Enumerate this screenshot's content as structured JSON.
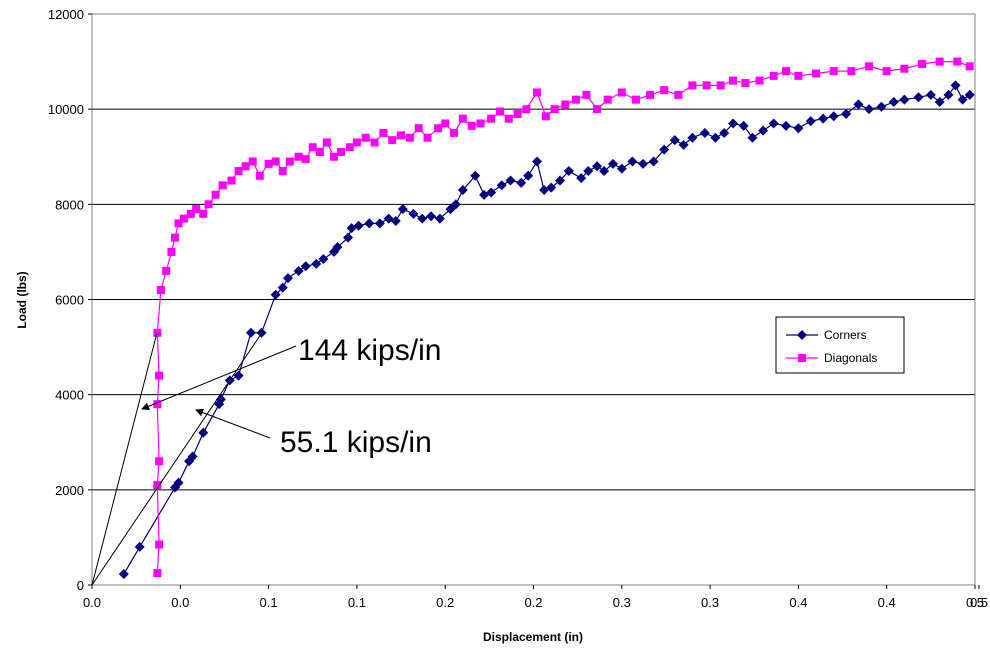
{
  "chart_data": {
    "type": "line",
    "xlabel": "Displacement (in)",
    "ylabel": "Load (lbs)",
    "xlim": [
      0,
      0.5
    ],
    "ylim": [
      0,
      12000
    ],
    "x_tick_labels": [
      "0.0",
      "0.0",
      "0.1",
      "0.1",
      "0.2",
      "0.2",
      "0.3",
      "0.3",
      "0.4",
      "0.4",
      "0.5",
      "0.5"
    ],
    "y_tick_labels": [
      "0",
      "2000",
      "4000",
      "6000",
      "8000",
      "10000",
      "12000"
    ],
    "grid": "horizontal",
    "legend_position": "right-middle",
    "series": [
      {
        "name": "Corners",
        "color": "#000080",
        "marker": "diamond",
        "points": [
          [
            0.018,
            230
          ],
          [
            0.027,
            800
          ],
          [
            0.047,
            2050
          ],
          [
            0.049,
            2150
          ],
          [
            0.055,
            2600
          ],
          [
            0.057,
            2700
          ],
          [
            0.063,
            3200
          ],
          [
            0.072,
            3800
          ],
          [
            0.073,
            3900
          ],
          [
            0.078,
            4300
          ],
          [
            0.083,
            4400
          ],
          [
            0.09,
            5300
          ],
          [
            0.096,
            5300
          ],
          [
            0.104,
            6100
          ],
          [
            0.108,
            6250
          ],
          [
            0.111,
            6450
          ],
          [
            0.117,
            6600
          ],
          [
            0.121,
            6700
          ],
          [
            0.127,
            6750
          ],
          [
            0.131,
            6850
          ],
          [
            0.137,
            7000
          ],
          [
            0.139,
            7100
          ],
          [
            0.145,
            7300
          ],
          [
            0.147,
            7500
          ],
          [
            0.151,
            7550
          ],
          [
            0.157,
            7600
          ],
          [
            0.163,
            7600
          ],
          [
            0.168,
            7700
          ],
          [
            0.172,
            7650
          ],
          [
            0.176,
            7900
          ],
          [
            0.182,
            7800
          ],
          [
            0.187,
            7700
          ],
          [
            0.192,
            7750
          ],
          [
            0.197,
            7700
          ],
          [
            0.203,
            7900
          ],
          [
            0.206,
            8000
          ],
          [
            0.21,
            8300
          ],
          [
            0.217,
            8600
          ],
          [
            0.222,
            8200
          ],
          [
            0.226,
            8250
          ],
          [
            0.232,
            8400
          ],
          [
            0.237,
            8500
          ],
          [
            0.243,
            8450
          ],
          [
            0.247,
            8600
          ],
          [
            0.252,
            8900
          ],
          [
            0.256,
            8300
          ],
          [
            0.26,
            8350
          ],
          [
            0.265,
            8500
          ],
          [
            0.27,
            8700
          ],
          [
            0.277,
            8550
          ],
          [
            0.281,
            8700
          ],
          [
            0.286,
            8800
          ],
          [
            0.29,
            8700
          ],
          [
            0.295,
            8850
          ],
          [
            0.3,
            8750
          ],
          [
            0.306,
            8900
          ],
          [
            0.312,
            8850
          ],
          [
            0.318,
            8900
          ],
          [
            0.324,
            9150
          ],
          [
            0.33,
            9350
          ],
          [
            0.335,
            9250
          ],
          [
            0.34,
            9400
          ],
          [
            0.347,
            9500
          ],
          [
            0.353,
            9400
          ],
          [
            0.358,
            9500
          ],
          [
            0.363,
            9700
          ],
          [
            0.369,
            9650
          ],
          [
            0.374,
            9400
          ],
          [
            0.38,
            9550
          ],
          [
            0.386,
            9700
          ],
          [
            0.393,
            9650
          ],
          [
            0.4,
            9600
          ],
          [
            0.407,
            9750
          ],
          [
            0.414,
            9800
          ],
          [
            0.42,
            9850
          ],
          [
            0.427,
            9900
          ],
          [
            0.434,
            10100
          ],
          [
            0.44,
            10000
          ],
          [
            0.447,
            10050
          ],
          [
            0.454,
            10150
          ],
          [
            0.46,
            10200
          ],
          [
            0.468,
            10250
          ],
          [
            0.475,
            10300
          ],
          [
            0.48,
            10150
          ],
          [
            0.485,
            10300
          ],
          [
            0.489,
            10500
          ],
          [
            0.493,
            10200
          ],
          [
            0.497,
            10300
          ]
        ]
      },
      {
        "name": "Diagonals",
        "color": "#FF00FF",
        "marker": "square",
        "points": [
          [
            0.037,
            250
          ],
          [
            0.038,
            850
          ],
          [
            0.037,
            2100
          ],
          [
            0.038,
            2600
          ],
          [
            0.037,
            3800
          ],
          [
            0.038,
            4400
          ],
          [
            0.037,
            5300
          ],
          [
            0.039,
            6200
          ],
          [
            0.042,
            6600
          ],
          [
            0.045,
            7000
          ],
          [
            0.047,
            7300
          ],
          [
            0.049,
            7600
          ],
          [
            0.052,
            7700
          ],
          [
            0.056,
            7800
          ],
          [
            0.059,
            7900
          ],
          [
            0.063,
            7800
          ],
          [
            0.066,
            8000
          ],
          [
            0.07,
            8200
          ],
          [
            0.074,
            8400
          ],
          [
            0.079,
            8500
          ],
          [
            0.083,
            8700
          ],
          [
            0.087,
            8800
          ],
          [
            0.091,
            8900
          ],
          [
            0.095,
            8600
          ],
          [
            0.1,
            8850
          ],
          [
            0.104,
            8900
          ],
          [
            0.108,
            8700
          ],
          [
            0.112,
            8900
          ],
          [
            0.117,
            9000
          ],
          [
            0.121,
            8950
          ],
          [
            0.125,
            9200
          ],
          [
            0.129,
            9100
          ],
          [
            0.133,
            9300
          ],
          [
            0.137,
            9000
          ],
          [
            0.141,
            9100
          ],
          [
            0.146,
            9200
          ],
          [
            0.15,
            9300
          ],
          [
            0.155,
            9400
          ],
          [
            0.16,
            9300
          ],
          [
            0.165,
            9500
          ],
          [
            0.17,
            9350
          ],
          [
            0.175,
            9450
          ],
          [
            0.18,
            9400
          ],
          [
            0.185,
            9600
          ],
          [
            0.19,
            9400
          ],
          [
            0.196,
            9600
          ],
          [
            0.2,
            9700
          ],
          [
            0.205,
            9500
          ],
          [
            0.21,
            9800
          ],
          [
            0.215,
            9650
          ],
          [
            0.22,
            9700
          ],
          [
            0.226,
            9800
          ],
          [
            0.231,
            9950
          ],
          [
            0.236,
            9800
          ],
          [
            0.241,
            9900
          ],
          [
            0.246,
            10000
          ],
          [
            0.252,
            10350
          ],
          [
            0.257,
            9850
          ],
          [
            0.262,
            10000
          ],
          [
            0.268,
            10100
          ],
          [
            0.274,
            10200
          ],
          [
            0.28,
            10300
          ],
          [
            0.286,
            10000
          ],
          [
            0.292,
            10200
          ],
          [
            0.3,
            10350
          ],
          [
            0.308,
            10200
          ],
          [
            0.316,
            10300
          ],
          [
            0.324,
            10400
          ],
          [
            0.332,
            10300
          ],
          [
            0.34,
            10500
          ],
          [
            0.348,
            10500
          ],
          [
            0.356,
            10500
          ],
          [
            0.363,
            10600
          ],
          [
            0.37,
            10550
          ],
          [
            0.378,
            10600
          ],
          [
            0.386,
            10700
          ],
          [
            0.393,
            10800
          ],
          [
            0.4,
            10700
          ],
          [
            0.41,
            10750
          ],
          [
            0.42,
            10800
          ],
          [
            0.43,
            10800
          ],
          [
            0.44,
            10900
          ],
          [
            0.45,
            10800
          ],
          [
            0.46,
            10850
          ],
          [
            0.47,
            10950
          ],
          [
            0.48,
            11000
          ],
          [
            0.49,
            11000
          ],
          [
            0.497,
            10900
          ]
        ]
      }
    ],
    "annotations": [
      {
        "text": "144 kips/in",
        "slope": 144
      },
      {
        "text": "55.1 kips/in",
        "slope": 55.1
      }
    ]
  }
}
